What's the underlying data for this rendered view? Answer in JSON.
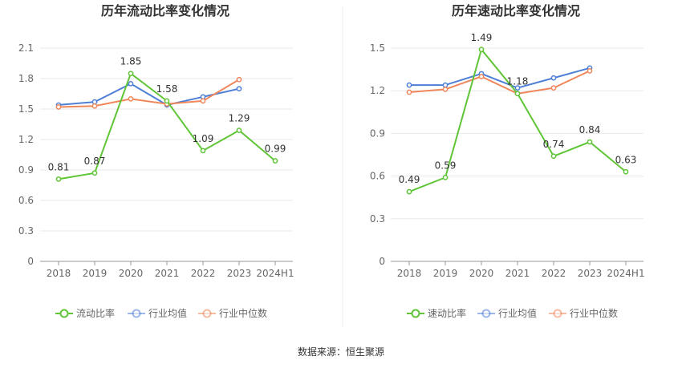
{
  "source_label": "数据来源：恒生聚源",
  "chart_data": [
    {
      "type": "line",
      "title": "历年流动比率变化情况",
      "categories": [
        "2018",
        "2019",
        "2020",
        "2021",
        "2022",
        "2023",
        "2024H1"
      ],
      "ylim": [
        0,
        2.1
      ],
      "yticks": [
        "0",
        "0.3",
        "0.6",
        "0.9",
        "1.2",
        "1.5",
        "1.8",
        "2.1"
      ],
      "grid": true,
      "legend_position": "bottom",
      "series": [
        {
          "name": "流动比率",
          "color": "#5fc536",
          "values": [
            0.81,
            0.87,
            1.85,
            1.58,
            1.09,
            1.29,
            0.99
          ],
          "data_labels": [
            "0.81",
            "0.87",
            "1.85",
            "1.58",
            "1.09",
            "1.29",
            "0.99"
          ]
        },
        {
          "name": "行业均值",
          "color": "#4e7fd6",
          "values": [
            1.54,
            1.57,
            1.75,
            1.54,
            1.62,
            1.7,
            null
          ]
        },
        {
          "name": "行业中位数",
          "color": "#f0875a",
          "values": [
            1.52,
            1.53,
            1.6,
            1.55,
            1.58,
            1.79,
            null
          ]
        }
      ]
    },
    {
      "type": "line",
      "title": "历年速动比率变化情况",
      "categories": [
        "2018",
        "2019",
        "2020",
        "2021",
        "2022",
        "2023",
        "2024H1"
      ],
      "ylim": [
        0,
        1.5
      ],
      "yticks": [
        "0",
        "0.3",
        "0.6",
        "0.9",
        "1.2",
        "1.5"
      ],
      "grid": true,
      "legend_position": "bottom",
      "series": [
        {
          "name": "速动比率",
          "color": "#5fc536",
          "values": [
            0.49,
            0.59,
            1.49,
            1.18,
            0.74,
            0.84,
            0.63
          ],
          "data_labels": [
            "0.49",
            "0.59",
            "1.49",
            "1.18",
            "0.74",
            "0.84",
            "0.63"
          ]
        },
        {
          "name": "行业均值",
          "color": "#4e7fd6",
          "values": [
            1.24,
            1.24,
            1.32,
            1.22,
            1.29,
            1.36,
            null
          ]
        },
        {
          "name": "行业中位数",
          "color": "#f0875a",
          "values": [
            1.19,
            1.21,
            1.3,
            1.18,
            1.22,
            1.34,
            null
          ]
        }
      ]
    }
  ]
}
